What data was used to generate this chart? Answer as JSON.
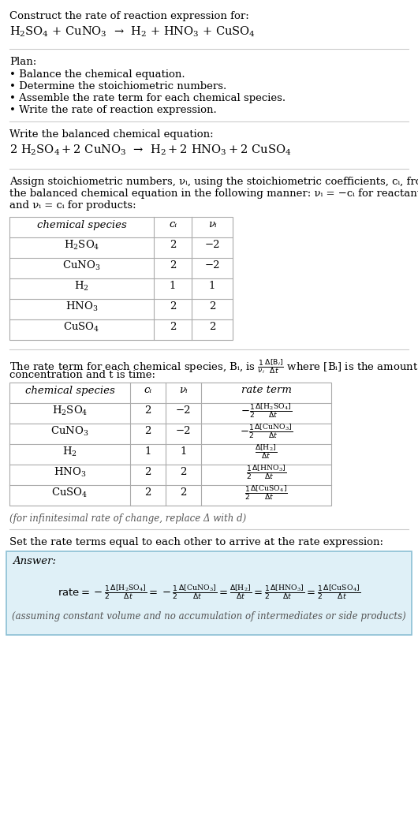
{
  "bg_color": "#ffffff",
  "table_border_color": "#aaaaaa",
  "answer_box_color": "#dff0f7",
  "answer_border_color": "#8bbfd4",
  "font_size": 9.5,
  "small_font": 8.5,
  "title1": "Construct the rate of reaction expression for:",
  "plan_header": "Plan:",
  "plan_items": [
    "• Balance the chemical equation.",
    "• Determine the stoichiometric numbers.",
    "• Assemble the rate term for each chemical species.",
    "• Write the rate of reaction expression."
  ],
  "balanced_header": "Write the balanced chemical equation:",
  "stoich_lines": [
    "Assign stoichiometric numbers, νᵢ, using the stoichiometric coefficients, cᵢ, from",
    "the balanced chemical equation in the following manner: νᵢ = −cᵢ for reactants",
    "and νᵢ = cᵢ for products:"
  ],
  "table1_headers": [
    "chemical species",
    "cᵢ",
    "νᵢ"
  ],
  "table1_rows": [
    [
      "H₂SO₄",
      "2",
      "−2"
    ],
    [
      "CuNO₃",
      "2",
      "−2"
    ],
    [
      "H₂",
      "1",
      "1"
    ],
    [
      "HNO₃",
      "2",
      "2"
    ],
    [
      "CuSO₄",
      "2",
      "2"
    ]
  ],
  "rate_line1": "The rate term for each chemical species, Bᵢ, is",
  "rate_line2": "concentration and t is time:",
  "table2_headers": [
    "chemical species",
    "cᵢ",
    "νᵢ",
    "rate term"
  ],
  "table2_rows": [
    [
      "H₂SO₄",
      "2",
      "−2"
    ],
    [
      "CuNO₃",
      "2",
      "−2"
    ],
    [
      "H₂",
      "1",
      "1"
    ],
    [
      "HNO₃",
      "2",
      "2"
    ],
    [
      "CuSO₄",
      "2",
      "2"
    ]
  ],
  "infinitesimal_note": "(for infinitesimal rate of change, replace Δ with d)",
  "set_equal_text": "Set the rate terms equal to each other to arrive at the rate expression:",
  "answer_label": "Answer:",
  "assuming_note": "(assuming constant volume and no accumulation of intermediates or side products)"
}
